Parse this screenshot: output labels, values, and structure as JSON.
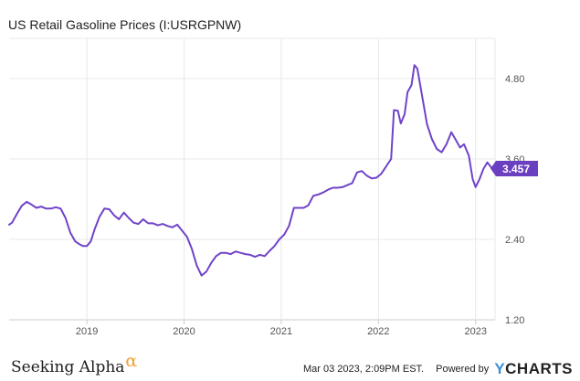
{
  "title": "US Retail Gasoline Prices (I:USRGPNW)",
  "footer": {
    "brand_left": "Seeking Alpha",
    "brand_left_symbol": "α",
    "timestamp": "Mar 03 2023, 2:09PM EST.",
    "powered_by": "Powered by",
    "brand_right_y": "Y",
    "brand_right_rest": "CHARTS"
  },
  "colors": {
    "line": "#7043c8",
    "badge": "#6a3fc0",
    "grid": "#e8e8e8",
    "axis_text": "#555555"
  },
  "chart_data": {
    "type": "line",
    "title": "US Retail Gasoline Prices (I:USRGPNW)",
    "xlabel": "",
    "ylabel": "",
    "x_range": [
      2018.2,
      2023.2
    ],
    "ylim": [
      1.2,
      5.4
    ],
    "y_ticks": [
      1.2,
      2.4,
      3.6,
      4.8
    ],
    "y_tick_labels": [
      "1.20",
      "2.40",
      "3.60",
      "4.80"
    ],
    "x_ticks": [
      2019,
      2020,
      2021,
      2022,
      2023
    ],
    "x_tick_labels": [
      "2019",
      "2020",
      "2021",
      "2022",
      "2023"
    ],
    "grid": true,
    "last_value_label": "3.457",
    "series": [
      {
        "x": [
          2018.2,
          2018.23,
          2018.28,
          2018.33,
          2018.38,
          2018.43,
          2018.48,
          2018.53,
          2018.58,
          2018.63,
          2018.68,
          2018.73,
          2018.78,
          2018.83,
          2018.88,
          2018.92,
          2018.96,
          2019.0,
          2019.04,
          2019.08,
          2019.13,
          2019.18,
          2019.23,
          2019.28,
          2019.33,
          2019.38,
          2019.43,
          2019.48,
          2019.53,
          2019.58,
          2019.63,
          2019.68,
          2019.73,
          2019.78,
          2019.83,
          2019.88,
          2019.93,
          2019.98,
          2020.03,
          2020.08,
          2020.13,
          2020.18,
          2020.23,
          2020.28,
          2020.33,
          2020.38,
          2020.43,
          2020.48,
          2020.53,
          2020.58,
          2020.63,
          2020.68,
          2020.73,
          2020.78,
          2020.83,
          2020.88,
          2020.93,
          2020.98,
          2021.03,
          2021.08,
          2021.13,
          2021.18,
          2021.23,
          2021.28,
          2021.33,
          2021.38,
          2021.43,
          2021.48,
          2021.53,
          2021.58,
          2021.63,
          2021.68,
          2021.73,
          2021.78,
          2021.83,
          2021.88,
          2021.93,
          2021.98,
          2022.03,
          2022.08,
          2022.13,
          2022.16,
          2022.2,
          2022.23,
          2022.27,
          2022.3,
          2022.34,
          2022.37,
          2022.4,
          2022.43,
          2022.46,
          2022.5,
          2022.55,
          2022.6,
          2022.65,
          2022.7,
          2022.75,
          2022.79,
          2022.84,
          2022.88,
          2022.93,
          2022.97,
          2023.0,
          2023.04,
          2023.08,
          2023.12,
          2023.17
        ],
        "values": [
          2.62,
          2.65,
          2.78,
          2.9,
          2.96,
          2.92,
          2.87,
          2.89,
          2.86,
          2.86,
          2.88,
          2.86,
          2.72,
          2.5,
          2.37,
          2.33,
          2.3,
          2.3,
          2.37,
          2.55,
          2.74,
          2.86,
          2.85,
          2.76,
          2.7,
          2.8,
          2.72,
          2.65,
          2.63,
          2.7,
          2.64,
          2.64,
          2.61,
          2.63,
          2.6,
          2.58,
          2.62,
          2.53,
          2.44,
          2.26,
          2.01,
          1.86,
          1.92,
          2.05,
          2.15,
          2.2,
          2.2,
          2.18,
          2.22,
          2.2,
          2.18,
          2.17,
          2.14,
          2.17,
          2.15,
          2.23,
          2.3,
          2.4,
          2.47,
          2.6,
          2.87,
          2.87,
          2.87,
          2.91,
          3.05,
          3.07,
          3.1,
          3.14,
          3.17,
          3.17,
          3.18,
          3.21,
          3.24,
          3.4,
          3.42,
          3.35,
          3.31,
          3.32,
          3.38,
          3.49,
          3.6,
          4.33,
          4.32,
          4.13,
          4.27,
          4.6,
          4.7,
          5.0,
          4.95,
          4.7,
          4.45,
          4.12,
          3.9,
          3.75,
          3.7,
          3.82,
          4.0,
          3.9,
          3.77,
          3.82,
          3.65,
          3.3,
          3.18,
          3.3,
          3.45,
          3.55,
          3.457
        ]
      }
    ]
  }
}
